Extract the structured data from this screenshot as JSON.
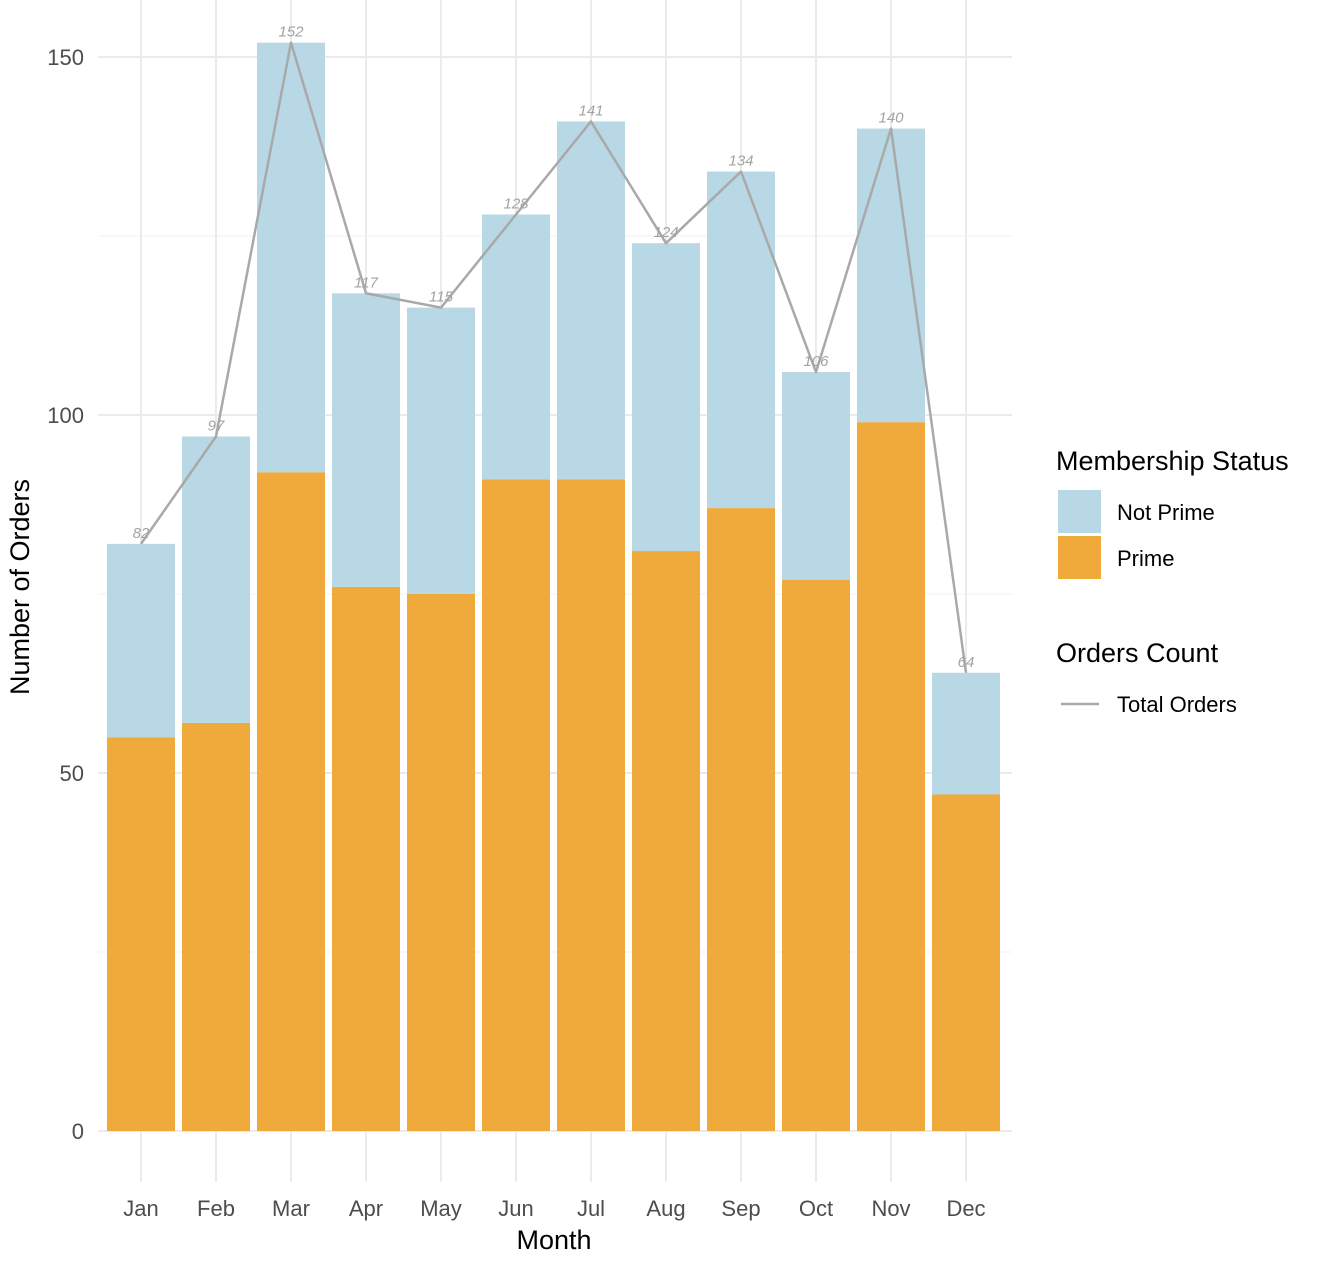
{
  "chart_data": {
    "type": "bar",
    "stacked": true,
    "categories": [
      "Jan",
      "Feb",
      "Mar",
      "Apr",
      "May",
      "Jun",
      "Jul",
      "Aug",
      "Sep",
      "Oct",
      "Nov",
      "Dec"
    ],
    "series": [
      {
        "name": "Prime",
        "values": [
          55,
          57,
          92,
          76,
          75,
          91,
          91,
          81,
          87,
          77,
          99,
          47
        ],
        "color": "#F0A93B"
      },
      {
        "name": "Not Prime",
        "values": [
          27,
          40,
          60,
          41,
          40,
          37,
          50,
          43,
          47,
          29,
          41,
          17
        ],
        "color": "#B7D8E4"
      }
    ],
    "line": {
      "name": "Total Orders",
      "values": [
        82,
        97,
        152,
        117,
        115,
        128,
        141,
        124,
        134,
        106,
        140,
        64
      ],
      "color": "#A9A9A9"
    },
    "xlabel": "Month",
    "ylabel": "Number of Orders",
    "ylim": [
      -7,
      154
    ],
    "yticks": [
      0,
      50,
      100,
      150
    ],
    "grid": true,
    "legend": {
      "position": "right",
      "groups": [
        {
          "title": "Membership Status",
          "items": [
            "Not Prime",
            "Prime"
          ]
        },
        {
          "title": "Orders Count",
          "items": [
            "Total Orders"
          ]
        }
      ]
    }
  }
}
